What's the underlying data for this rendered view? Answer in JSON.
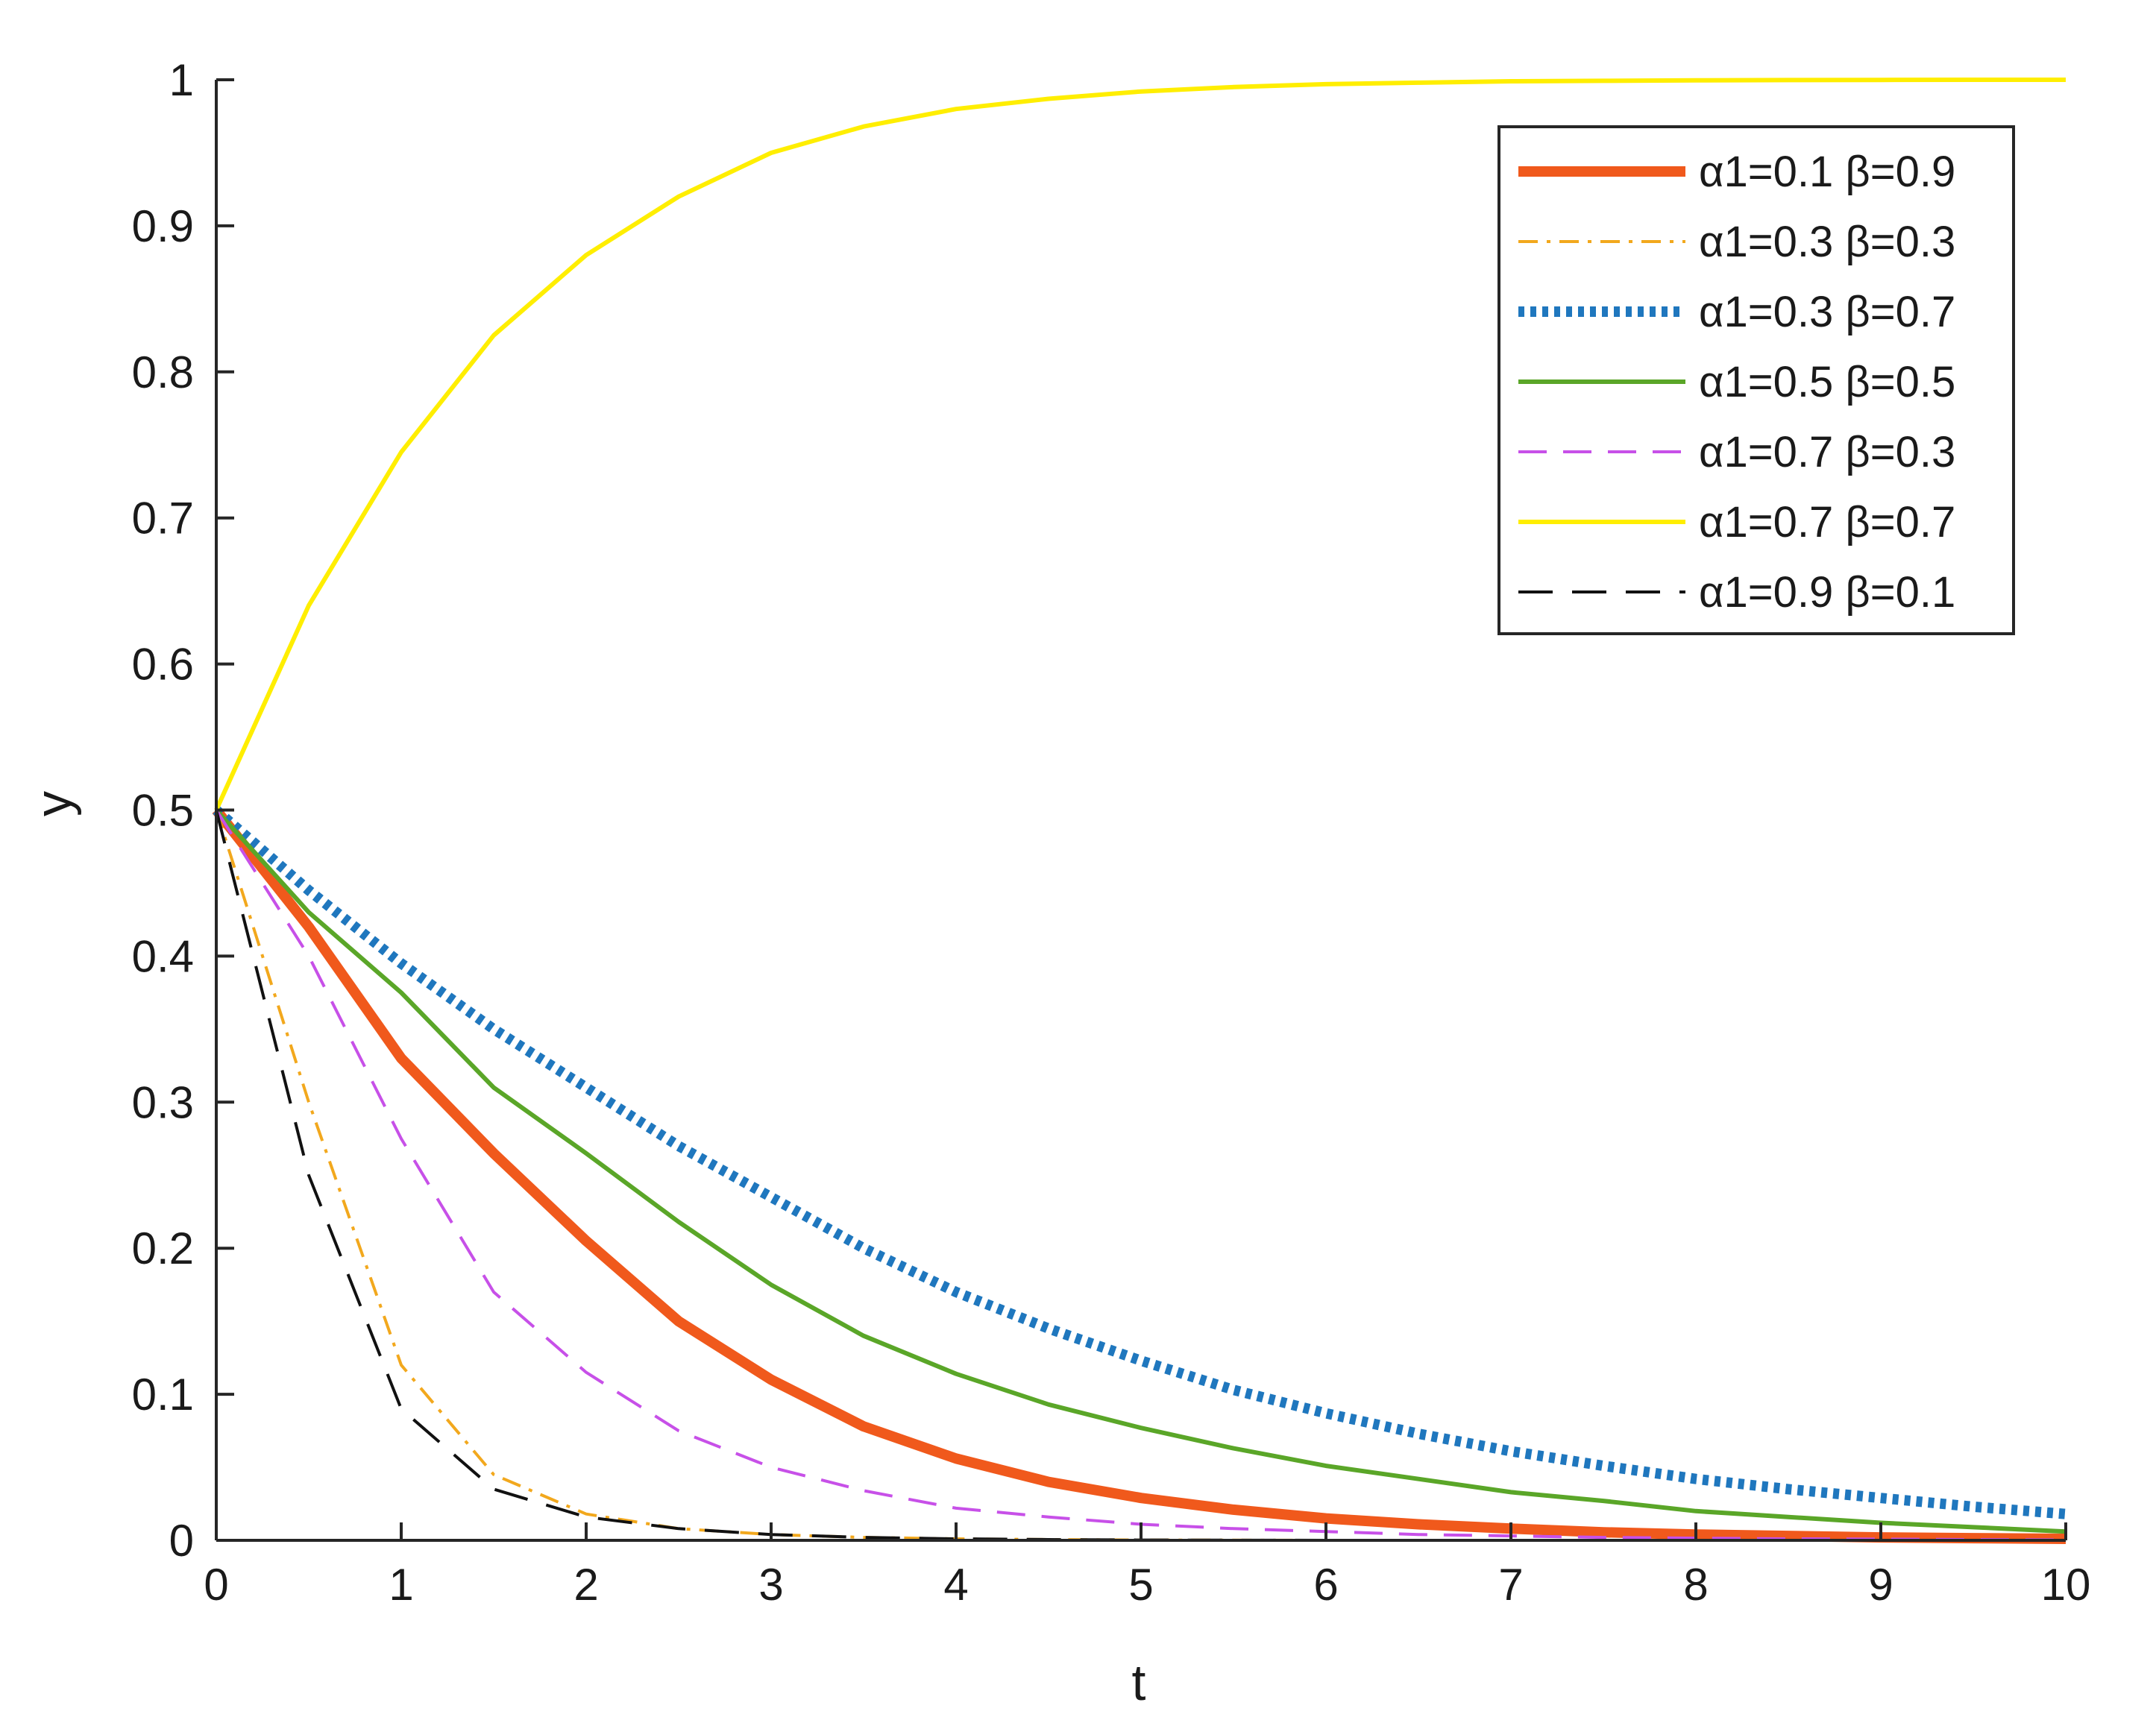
{
  "chart_data": {
    "type": "line",
    "xlabel": "t",
    "ylabel": "y",
    "xlim": [
      0,
      10
    ],
    "ylim": [
      0,
      1
    ],
    "xticks": [
      "0",
      "1",
      "2",
      "3",
      "4",
      "5",
      "6",
      "7",
      "8",
      "9",
      "10"
    ],
    "yticks": [
      "0",
      "0.1",
      "0.2",
      "0.3",
      "0.4",
      "0.5",
      "0.6",
      "0.7",
      "0.8",
      "0.9",
      "1"
    ],
    "grid": false,
    "legend_position": "top-right",
    "x": [
      0,
      0.5,
      1,
      1.5,
      2,
      2.5,
      3,
      3.5,
      4,
      4.5,
      5,
      5.5,
      6,
      6.5,
      7,
      7.5,
      8,
      8.5,
      9,
      9.5,
      10
    ],
    "series": [
      {
        "name": "α1=0.1 β=0.9",
        "color": "#f0591c",
        "style": "solid-thick",
        "values": [
          0.5,
          0.42,
          0.33,
          0.265,
          0.205,
          0.15,
          0.11,
          0.078,
          0.056,
          0.04,
          0.029,
          0.021,
          0.015,
          0.011,
          0.008,
          0.0055,
          0.004,
          0.003,
          0.002,
          0.0015,
          0.001
        ]
      },
      {
        "name": "α1=0.3 β=0.3",
        "color": "#f2a81d",
        "style": "dashdot",
        "values": [
          0.5,
          0.3,
          0.12,
          0.045,
          0.018,
          0.008,
          0.004,
          0.002,
          0.001,
          0.0005,
          0.0002,
          0.0001,
          0,
          0,
          0,
          0,
          0,
          0,
          0,
          0,
          0
        ]
      },
      {
        "name": "α1=0.3 β=0.7",
        "color": "#1f77be",
        "style": "dotted",
        "values": [
          0.5,
          0.445,
          0.395,
          0.35,
          0.31,
          0.27,
          0.235,
          0.2,
          0.17,
          0.145,
          0.123,
          0.103,
          0.087,
          0.073,
          0.061,
          0.051,
          0.042,
          0.035,
          0.029,
          0.023,
          0.018
        ]
      },
      {
        "name": "α1=0.5 β=0.5",
        "color": "#5aa628",
        "style": "solid",
        "values": [
          0.5,
          0.43,
          0.375,
          0.31,
          0.265,
          0.218,
          0.175,
          0.14,
          0.114,
          0.093,
          0.077,
          0.063,
          0.051,
          0.042,
          0.033,
          0.027,
          0.02,
          0.016,
          0.012,
          0.009,
          0.006
        ]
      },
      {
        "name": "α1=0.7 β=0.3",
        "color": "#c750e8",
        "style": "dashed",
        "values": [
          0.5,
          0.4,
          0.275,
          0.17,
          0.115,
          0.075,
          0.05,
          0.034,
          0.022,
          0.016,
          0.011,
          0.008,
          0.006,
          0.004,
          0.003,
          0.002,
          0.0015,
          0.001,
          0.0008,
          0.0005,
          0.0003
        ]
      },
      {
        "name": "α1=0.7 β=0.7",
        "color": "#ffee00",
        "style": "solid",
        "values": [
          0.5,
          0.64,
          0.745,
          0.825,
          0.88,
          0.92,
          0.95,
          0.968,
          0.98,
          0.987,
          0.992,
          0.995,
          0.997,
          0.998,
          0.999,
          0.9993,
          0.9996,
          0.9998,
          0.9999,
          1.0,
          1.0
        ]
      },
      {
        "name": "α1=0.9 β=0.1",
        "color": "#111111",
        "style": "longdash",
        "values": [
          0.5,
          0.25,
          0.09,
          0.035,
          0.016,
          0.008,
          0.004,
          0.002,
          0.001,
          0.0005,
          0.0002,
          0.0001,
          0,
          0,
          0,
          0,
          0,
          0,
          0,
          0,
          0
        ]
      }
    ]
  }
}
